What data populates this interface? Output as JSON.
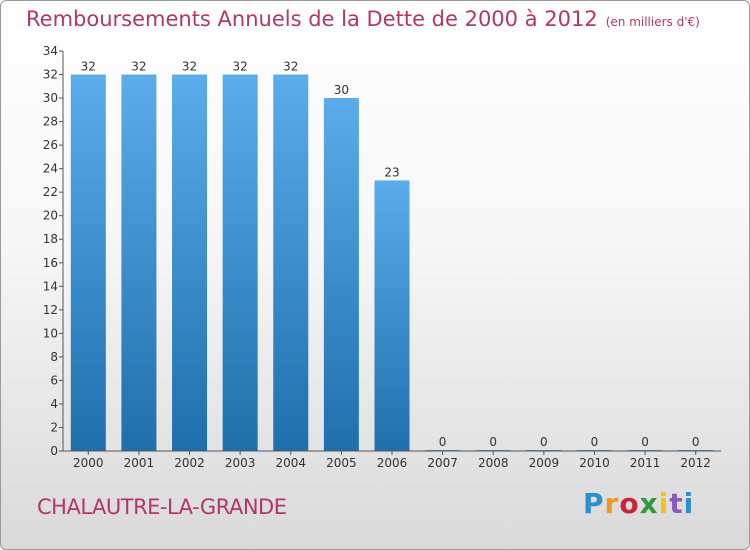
{
  "header": {
    "title": "Remboursements Annuels de la Dette de 2000 à 2012",
    "unit": "(en milliers d'€)"
  },
  "footer": {
    "town": "CHALAUTRE-LA-GRANDE",
    "logo_text": "Proxiti"
  },
  "colors": {
    "title": "#b0376a",
    "bar_top": "#5aacea",
    "bar_bottom": "#1f6fad"
  },
  "chart_data": {
    "type": "bar",
    "title": "Remboursements Annuels de la Dette de 2000 à 2012",
    "categories": [
      "2000",
      "2001",
      "2002",
      "2003",
      "2004",
      "2005",
      "2006",
      "2007",
      "2008",
      "2009",
      "2010",
      "2011",
      "2012"
    ],
    "values": [
      32,
      32,
      32,
      32,
      32,
      30,
      23,
      0,
      0,
      0,
      0,
      0,
      0
    ],
    "data_labels": [
      "32",
      "32",
      "32",
      "32",
      "32",
      "30",
      "23",
      "0",
      "0",
      "0",
      "0",
      "0",
      "0"
    ],
    "ylim": [
      0,
      34
    ],
    "yticks": [
      "0",
      "2",
      "4",
      "6",
      "8",
      "10",
      "12",
      "14",
      "16",
      "18",
      "20",
      "22",
      "24",
      "26",
      "28",
      "30",
      "32",
      "34"
    ],
    "grid": false,
    "legend": "none"
  }
}
